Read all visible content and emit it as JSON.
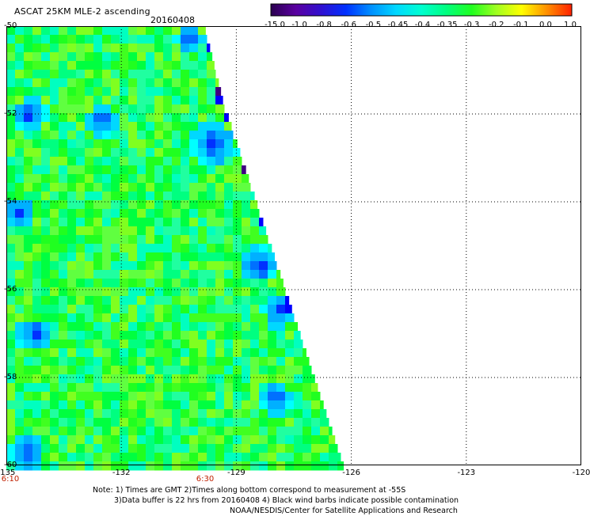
{
  "header": {
    "title": "ASCAT 25KM MLE-2 ascending",
    "date": "20160408"
  },
  "colorbar": {
    "labels": [
      "-15.0",
      "-1.0",
      "-0.8",
      "-0.6",
      "-0.5",
      "-0.45",
      "-0.4",
      "-0.35",
      "-0.3",
      "-0.2",
      "-0.1",
      "0.0",
      "1.0"
    ],
    "colors": [
      "#2a0050",
      "#5a00a0",
      "#3010d0",
      "#0030ff",
      "#0090ff",
      "#00d8ff",
      "#00ffd0",
      "#00ff80",
      "#20ff20",
      "#a0ff20",
      "#ffff00",
      "#ff9000",
      "#ff2000"
    ]
  },
  "map": {
    "y_axis_labels": [
      "-50",
      "-52",
      "-54",
      "-56",
      "-58",
      "-60"
    ],
    "x_axis_labels": [
      "-135",
      "-132",
      "-129",
      "-126",
      "-123",
      "-120"
    ],
    "time_labels": [
      "6:10",
      "6:30"
    ],
    "lat_range": [
      -60,
      -50
    ],
    "lon_range": [
      -135,
      -120
    ],
    "grid": true
  },
  "notes": {
    "line1": "Note: 1) Times are GMT 2)Times along bottom correspond to measurement at -55S",
    "line2": "3)Data buffer is 22 hrs from 20160408 4) Black wind barbs indicate possible contamination",
    "line3": "NOAA/NESDIS/Center for Satellite Applications and Research"
  }
}
